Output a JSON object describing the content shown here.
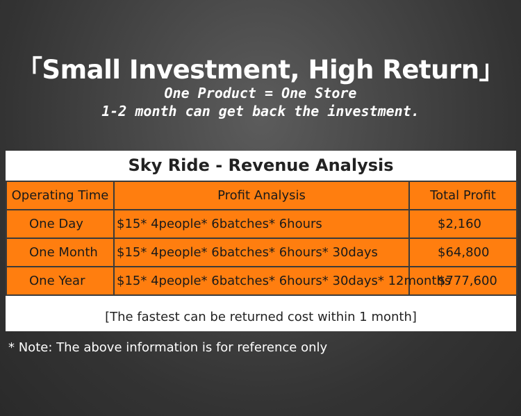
{
  "headline": "「Small Investment, High Return」",
  "subheadline": {
    "line1": "One Product = One Store",
    "line2": "1-2 month can get back the investment."
  },
  "table": {
    "title": "Sky Ride - Revenue Analysis",
    "headers": [
      "Operating Time",
      "Profit Analysis",
      "Total Profit"
    ],
    "rows": [
      {
        "period": "One Day",
        "analysis": "$15* 4people* 6batches* 6hours",
        "total": "$2,160"
      },
      {
        "period": "One Month",
        "analysis": "$15* 4people* 6batches* 6hours* 30days",
        "total": "$64,800"
      },
      {
        "period": "One Year",
        "analysis": "$15* 4people* 6batches* 6hours* 30days* 12months",
        "total": "$777,600"
      }
    ],
    "footer": "[The fastest can be returned cost within 1 month]"
  },
  "note": "* Note: The above information is for reference only",
  "colors": {
    "table_fill": "#ff7e0f",
    "grid_line": "#3a3a3a",
    "background": "#3c3c3c"
  }
}
